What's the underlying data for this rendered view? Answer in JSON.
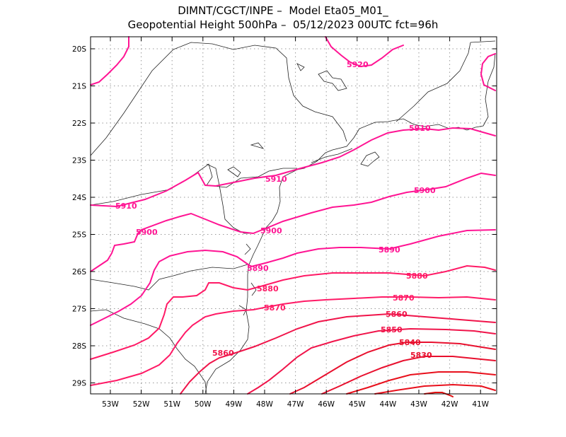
{
  "header": {
    "line1": "DIMNT/CGCT/INPE –  Model Eta05_M01_",
    "line2": "Geopotential Height 500hPa –  05/12/2023 00UTC fct=96h"
  },
  "axes": {
    "lon_ticks": [
      "53W",
      "52W",
      "51W",
      "50W",
      "49W",
      "48W",
      "47W",
      "46W",
      "45W",
      "44W",
      "43W",
      "42W",
      "41W"
    ],
    "lat_ticks": [
      "20S",
      "21S",
      "22S",
      "23S",
      "24S",
      "25S",
      "26S",
      "27S",
      "28S",
      "29S"
    ]
  },
  "contours": [
    {
      "level": 5920,
      "label": "5920",
      "color": "#ff1493"
    },
    {
      "level": 5910,
      "label": "5910",
      "color": "#ff1493"
    },
    {
      "level": 5900,
      "label": "5900",
      "color": "#ff1493"
    },
    {
      "level": 5890,
      "label": "5890",
      "color": "#ff1493"
    },
    {
      "level": 5880,
      "label": "5880",
      "color": "#ff1a66"
    },
    {
      "level": 5870,
      "label": "5870",
      "color": "#ff1a66"
    },
    {
      "level": 5860,
      "label": "5860",
      "color": "#f0144a"
    },
    {
      "level": 5850,
      "label": "5850",
      "color": "#f0144a"
    },
    {
      "level": 5840,
      "label": "5840",
      "color": "#e8102e"
    },
    {
      "level": 5830,
      "label": "5830",
      "color": "#e8102e"
    },
    {
      "level": 5820,
      "label": "",
      "color": "#e8101c"
    },
    {
      "level": 5810,
      "label": "",
      "color": "#e8101c"
    },
    {
      "level": 5800,
      "label": "",
      "color": "#e01010"
    }
  ],
  "labels": [
    {
      "id": "5920a",
      "text": "5920"
    },
    {
      "id": "5910a",
      "text": "5910"
    },
    {
      "id": "5910b",
      "text": "5910"
    },
    {
      "id": "5910c",
      "text": "5910"
    },
    {
      "id": "5900a",
      "text": "5900"
    },
    {
      "id": "5900b",
      "text": "5900"
    },
    {
      "id": "5900c",
      "text": "5900"
    },
    {
      "id": "5890a",
      "text": "5890"
    },
    {
      "id": "5890b",
      "text": "5890"
    },
    {
      "id": "5880a",
      "text": "5880"
    },
    {
      "id": "5880b",
      "text": "5880"
    },
    {
      "id": "5870a",
      "text": "5870"
    },
    {
      "id": "5870b",
      "text": "5870"
    },
    {
      "id": "5860a",
      "text": "5860"
    },
    {
      "id": "5860b",
      "text": "5860"
    },
    {
      "id": "5850a",
      "text": "5850"
    },
    {
      "id": "5840a",
      "text": "5840"
    },
    {
      "id": "5830a",
      "text": "5830"
    }
  ]
}
